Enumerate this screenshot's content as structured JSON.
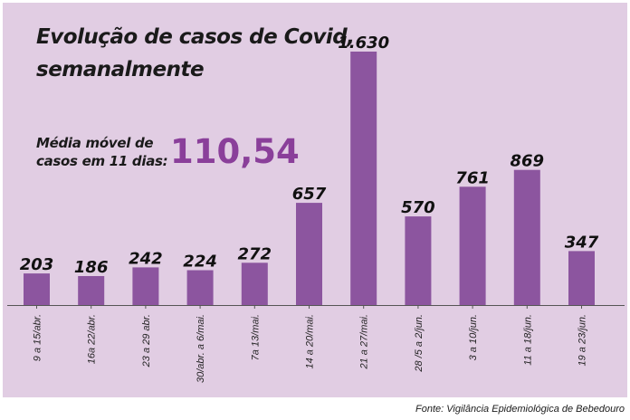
{
  "title_line1": "Evolução de casos de Covid,",
  "title_line2": "semanalmente",
  "moving_average": {
    "label": "Média móvel de casos em 11 dias:",
    "value": "110,54"
  },
  "source": "Fonte: Vigilância Epidemiológica de Bebedouro",
  "colors": {
    "bar": "#8c559f",
    "highlight": "#8a3f9a",
    "background": "#e1cde3"
  },
  "chart_data": {
    "type": "bar",
    "categories": [
      "9 a 15/abr.",
      "16a 22/abr.",
      "23 a 29 abr.",
      "30/abr. a 6/mai.",
      "7a 13/mai.",
      "14 a 20/mai.",
      "21 a 27/mai.",
      "28 /5 a 2/jun.",
      "3 a 10/jun.",
      "11 a 18/jun.",
      "19 a 23/jun."
    ],
    "values": [
      203,
      186,
      242,
      224,
      272,
      657,
      1630,
      570,
      761,
      869,
      347
    ],
    "value_labels": [
      "203",
      "186",
      "242",
      "224",
      "272",
      "657",
      "1.630",
      "570",
      "761",
      "869",
      "347"
    ],
    "ylim": [
      0,
      1630
    ],
    "grid": false,
    "xlabel": "",
    "ylabel": ""
  }
}
